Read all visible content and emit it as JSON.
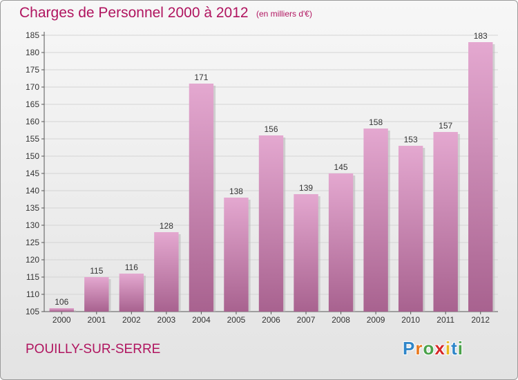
{
  "header": {
    "title": "Charges de Personnel 2000 à 2012",
    "subtitle": "(en milliers d'€)"
  },
  "footer": {
    "location": "POUILLY-SUR-SERRE",
    "brand_letters": [
      "P",
      "r",
      "o",
      "x",
      "i",
      "t",
      "i"
    ],
    "brand_colors": [
      "#2f86c9",
      "#e8781e",
      "#4aa24a",
      "#d62828",
      "#e8b81e",
      "#2f86c9",
      "#4aa24a"
    ]
  },
  "colors": {
    "title": "#b0145f",
    "bar_light": "#e4a8d0",
    "bar_dark": "#a8628f",
    "axis": "#555555"
  },
  "chart_data": {
    "type": "bar",
    "title": "Charges de Personnel 2000 à 2012",
    "subtitle": "(en milliers d'€)",
    "categories": [
      "2000",
      "2001",
      "2002",
      "2003",
      "2004",
      "2005",
      "2006",
      "2007",
      "2008",
      "2009",
      "2010",
      "2011",
      "2012"
    ],
    "values": [
      106,
      115,
      116,
      128,
      171,
      138,
      156,
      139,
      145,
      158,
      153,
      157,
      183
    ],
    "ylim": [
      105,
      185
    ],
    "yticks": [
      105,
      110,
      115,
      120,
      125,
      130,
      135,
      140,
      145,
      150,
      155,
      160,
      165,
      170,
      175,
      180,
      185
    ],
    "grid": true,
    "xlabel": "",
    "ylabel": ""
  }
}
